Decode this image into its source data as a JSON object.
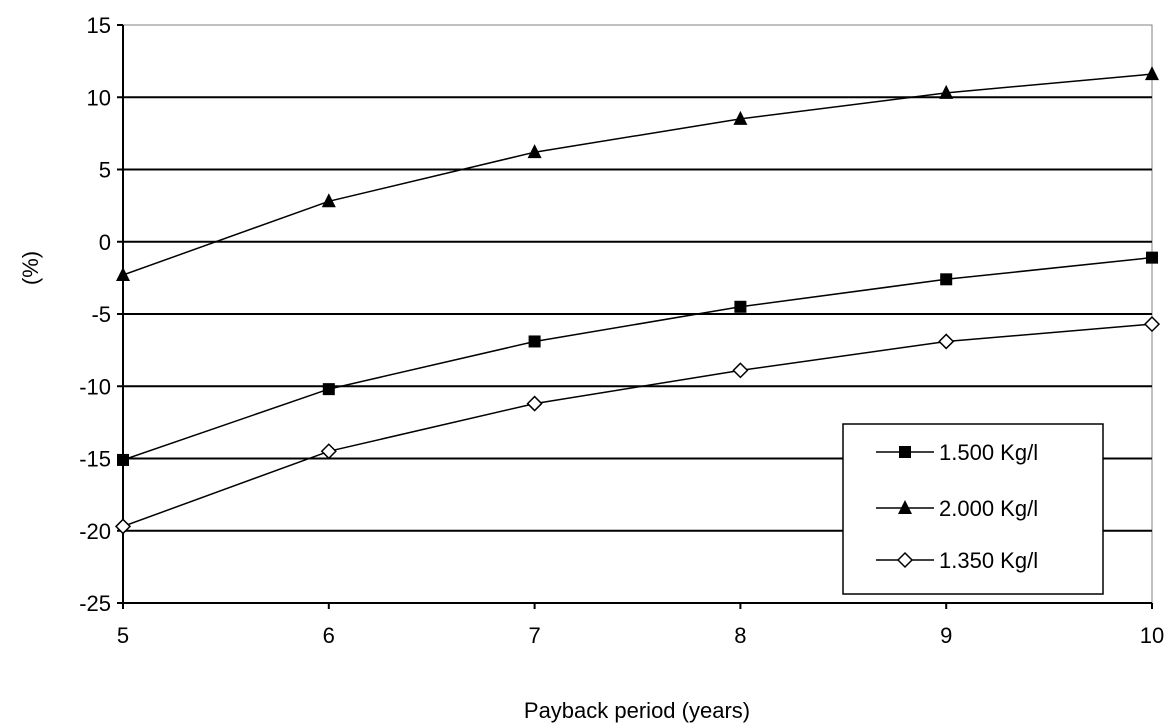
{
  "chart_data": {
    "type": "line",
    "title": "",
    "xlabel": "Payback period (years)",
    "ylabel": "(%)",
    "x": [
      5,
      6,
      7,
      8,
      9,
      10
    ],
    "xlim": [
      5,
      10
    ],
    "ylim": [
      -25,
      15
    ],
    "yticks": [
      15,
      10,
      5,
      0,
      -5,
      -10,
      -15,
      -20,
      -25
    ],
    "xticks": [
      5,
      6,
      7,
      8,
      9,
      10
    ],
    "grid": "horizontal",
    "legend_position": "bottom-right",
    "series": [
      {
        "name": "1.500 Kg/l",
        "marker": "filled-square",
        "values": [
          -15.1,
          -10.2,
          -6.9,
          -4.5,
          -2.6,
          -1.1
        ]
      },
      {
        "name": "2.000 Kg/l",
        "marker": "filled-triangle",
        "values": [
          -2.3,
          2.8,
          6.2,
          8.5,
          10.3,
          11.6
        ]
      },
      {
        "name": "1.350 Kg/l",
        "marker": "open-diamond",
        "values": [
          -19.7,
          -14.5,
          -11.2,
          -8.9,
          -6.9,
          -5.7
        ]
      }
    ]
  }
}
